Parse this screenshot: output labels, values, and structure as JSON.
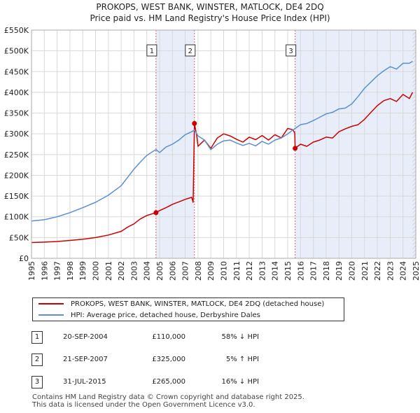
{
  "header": {
    "title": "PROKOPS, WEST BANK, WINSTER, MATLOCK, DE4 2DQ",
    "subtitle": "Price paid vs. HM Land Registry's House Price Index (HPI)"
  },
  "chart_data": {
    "type": "line",
    "title": "PROKOPS, WEST BANK, WINSTER, MATLOCK, DE4 2DQ",
    "subtitle": "Price paid vs. HM Land Registry's House Price Index (HPI)",
    "xlabel": "",
    "ylabel": "",
    "xlim": [
      1995,
      2025
    ],
    "ylim": [
      0,
      550000
    ],
    "grid": true,
    "legend_position": "below",
    "x_ticks": [
      1995,
      1996,
      1997,
      1998,
      1999,
      2000,
      2001,
      2002,
      2003,
      2004,
      2005,
      2006,
      2007,
      2008,
      2009,
      2010,
      2011,
      2012,
      2013,
      2014,
      2015,
      2016,
      2017,
      2018,
      2019,
      2020,
      2021,
      2022,
      2023,
      2024,
      2025
    ],
    "x_tick_labels": [
      "1995",
      "1996",
      "1997",
      "1998",
      "1999",
      "2000",
      "2001",
      "2002",
      "2003",
      "2004",
      "2005",
      "2006",
      "2007",
      "2008",
      "2009",
      "2010",
      "2011",
      "2012",
      "2013",
      "2014",
      "2015",
      "2016",
      "2017",
      "2018",
      "2019",
      "2020",
      "2021",
      "2022",
      "2023",
      "2024",
      "2025"
    ],
    "y_ticks": [
      0,
      50000,
      100000,
      150000,
      200000,
      250000,
      300000,
      350000,
      400000,
      450000,
      500000,
      550000
    ],
    "y_tick_labels": [
      "£0",
      "£50K",
      "£100K",
      "£150K",
      "£200K",
      "£250K",
      "£300K",
      "£350K",
      "£400K",
      "£450K",
      "£500K",
      "£550K"
    ],
    "shaded_periods": [
      [
        2004.72,
        2007.72
      ],
      [
        2015.58,
        2025
      ]
    ],
    "hatched_region": [
      2024.75,
      2025
    ],
    "series": [
      {
        "name": "PROKOPS, WEST BANK, WINSTER, MATLOCK, DE4 2DQ (detached house)",
        "color": "#cc0000",
        "x": [
          1995,
          1996,
          1997,
          1998,
          1999,
          2000,
          2001,
          2002,
          2002.5,
          2003,
          2003.5,
          2004,
          2004.72,
          2005,
          2005.5,
          2006,
          2006.5,
          2007,
          2007.5,
          2007.62,
          2007.72,
          2007.9,
          2008,
          2008.5,
          2009,
          2009.5,
          2010,
          2010.5,
          2011,
          2011.5,
          2012,
          2012.5,
          2013,
          2013.5,
          2014,
          2014.5,
          2015,
          2015.4,
          2015.55,
          2015.58,
          2016,
          2016.5,
          2017,
          2017.5,
          2018,
          2018.5,
          2019,
          2019.5,
          2020,
          2020.5,
          2021,
          2021.5,
          2022,
          2022.5,
          2023,
          2023.5,
          2024,
          2024.5,
          2024.75
        ],
        "values": [
          38000,
          39000,
          40500,
          43000,
          46000,
          50000,
          56000,
          65000,
          75000,
          83000,
          95000,
          103000,
          110000,
          115000,
          122000,
          130000,
          136000,
          142000,
          147000,
          135000,
          325000,
          295000,
          270000,
          285000,
          265000,
          290000,
          300000,
          295000,
          287000,
          280000,
          292000,
          286000,
          296000,
          285000,
          298000,
          290000,
          313000,
          310000,
          302000,
          265000,
          275000,
          270000,
          280000,
          285000,
          292000,
          290000,
          305000,
          312000,
          318000,
          322000,
          335000,
          352000,
          368000,
          380000,
          385000,
          378000,
          395000,
          385000,
          400000
        ]
      },
      {
        "name": "HPI: Average price, detached house, Derbyshire Dales",
        "color": "#5b8fd0",
        "x": [
          1995,
          1996,
          1997,
          1998,
          1999,
          2000,
          2001,
          2002,
          2002.5,
          2003,
          2003.5,
          2004,
          2004.5,
          2004.72,
          2005,
          2005.5,
          2006,
          2006.5,
          2007,
          2007.5,
          2007.72,
          2008,
          2008.5,
          2009,
          2009.5,
          2010,
          2010.5,
          2011,
          2011.5,
          2012,
          2012.5,
          2013,
          2013.5,
          2014,
          2014.5,
          2015,
          2015.58,
          2016,
          2016.5,
          2017,
          2017.5,
          2018,
          2018.5,
          2019,
          2019.5,
          2020,
          2020.5,
          2021,
          2021.5,
          2022,
          2022.5,
          2023,
          2023.5,
          2024,
          2024.5,
          2024.75
        ],
        "values": [
          90000,
          93000,
          100000,
          110000,
          122000,
          135000,
          152000,
          175000,
          195000,
          215000,
          232000,
          248000,
          258000,
          262000,
          255000,
          268000,
          275000,
          285000,
          298000,
          305000,
          309000,
          295000,
          285000,
          262000,
          275000,
          283000,
          285000,
          278000,
          272000,
          277000,
          271000,
          282000,
          275000,
          285000,
          290000,
          300000,
          313000,
          322000,
          325000,
          332000,
          340000,
          348000,
          352000,
          360000,
          362000,
          372000,
          390000,
          410000,
          425000,
          440000,
          452000,
          462000,
          456000,
          470000,
          470000,
          475000
        ]
      }
    ],
    "markers": [
      {
        "label": "1",
        "x": 2004.72,
        "value": 110000
      },
      {
        "label": "2",
        "x": 2007.72,
        "value": 325000
      },
      {
        "label": "3",
        "x": 2015.58,
        "value": 265000
      }
    ]
  },
  "legend": {
    "red_label": "PROKOPS, WEST BANK, WINSTER, MATLOCK, DE4 2DQ (detached house)",
    "blue_label": "HPI: Average price, detached house, Derbyshire Dales"
  },
  "sales": [
    {
      "num": "1",
      "date": "20-SEP-2004",
      "price": "£110,000",
      "hpi": "58% ↓ HPI"
    },
    {
      "num": "2",
      "date": "21-SEP-2007",
      "price": "£325,000",
      "hpi": "5% ↑ HPI"
    },
    {
      "num": "3",
      "date": "31-JUL-2015",
      "price": "£265,000",
      "hpi": "16% ↓ HPI"
    }
  ],
  "footer": {
    "line1": "Contains HM Land Registry data © Crown copyright and database right 2025.",
    "line2": "This data is licensed under the Open Government Licence v3.0."
  }
}
